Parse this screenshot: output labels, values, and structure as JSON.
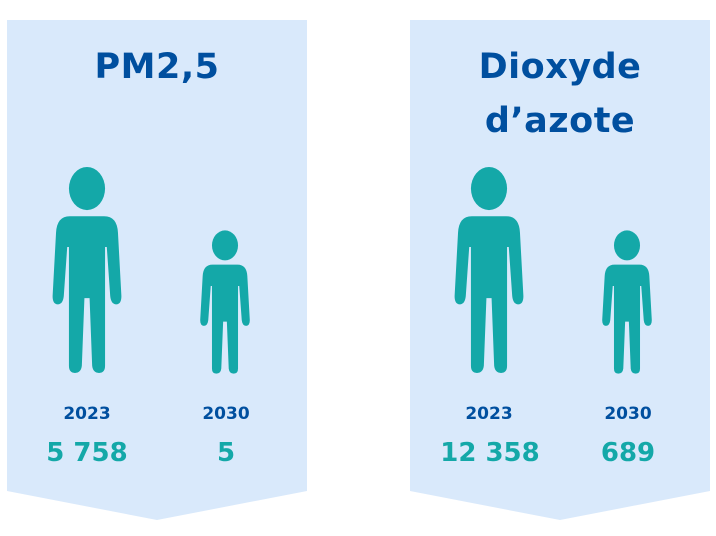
{
  "accent_color": "#14a8a8",
  "title_color": "#004f9f",
  "banner_color": "#d9e9fb",
  "panels": [
    {
      "title_lines": [
        "PM2,5"
      ],
      "icons": [
        "adult-person-icon",
        "child-person-icon"
      ],
      "years": [
        "2023",
        "2030"
      ],
      "values": [
        "5 758",
        "5"
      ]
    },
    {
      "title_lines": [
        "Dioxyde",
        "d’azote"
      ],
      "icons": [
        "adult-person-icon",
        "child-person-icon"
      ],
      "years": [
        "2023",
        "2030"
      ],
      "values": [
        "12 358",
        "689"
      ]
    }
  ]
}
